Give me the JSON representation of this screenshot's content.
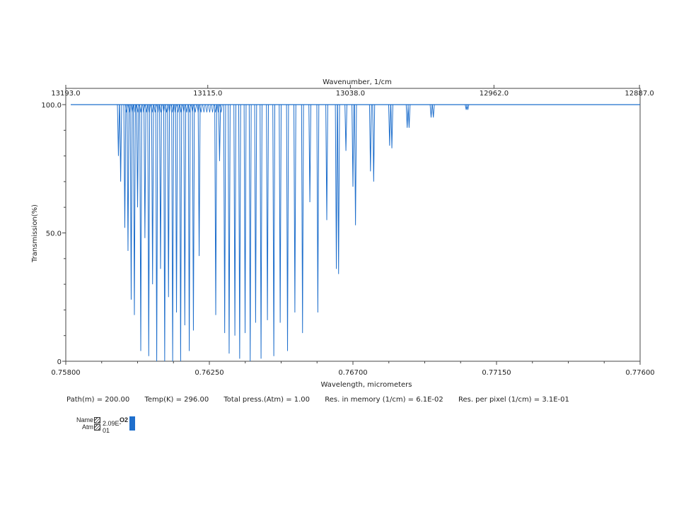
{
  "chart_data": {
    "type": "line",
    "title": "",
    "xlabel": "Wavelength, micrometers",
    "x2label": "Wavenumber, 1/cm",
    "ylabel": "Transmission(%)",
    "xlim": [
      0.758,
      0.776
    ],
    "ylim": [
      0,
      100
    ],
    "xticks": [
      "0.75800",
      "0.76250",
      "0.76700",
      "0.77150",
      "0.77600"
    ],
    "x2ticks": [
      "13193.0",
      "13115.0",
      "13038.0",
      "12962.0",
      "12887.0"
    ],
    "x2tick_positions_um": [
      0.758,
      0.76245,
      0.76692,
      0.77142,
      0.77598
    ],
    "yticks": [
      "0",
      "50.0",
      "100.0"
    ],
    "line_color": "#1f6fcc",
    "series": [
      {
        "name": "O2",
        "baseline": 100,
        "absorption_lines": [
          {
            "x": 0.75965,
            "y": 80
          },
          {
            "x": 0.75972,
            "y": 70
          },
          {
            "x": 0.75985,
            "y": 52
          },
          {
            "x": 0.75995,
            "y": 43
          },
          {
            "x": 0.76005,
            "y": 24
          },
          {
            "x": 0.76015,
            "y": 18
          },
          {
            "x": 0.76025,
            "y": 60
          },
          {
            "x": 0.76035,
            "y": 4
          },
          {
            "x": 0.76048,
            "y": 48
          },
          {
            "x": 0.7606,
            "y": 2
          },
          {
            "x": 0.76072,
            "y": 30
          },
          {
            "x": 0.76085,
            "y": 0
          },
          {
            "x": 0.76097,
            "y": 36
          },
          {
            "x": 0.7611,
            "y": 0
          },
          {
            "x": 0.76122,
            "y": 25
          },
          {
            "x": 0.76135,
            "y": 0
          },
          {
            "x": 0.76147,
            "y": 19
          },
          {
            "x": 0.7616,
            "y": 0
          },
          {
            "x": 0.76173,
            "y": 14
          },
          {
            "x": 0.76187,
            "y": 4
          },
          {
            "x": 0.762,
            "y": 12
          },
          {
            "x": 0.76218,
            "y": 41
          },
          {
            "x": 0.7627,
            "y": 18
          },
          {
            "x": 0.76282,
            "y": 78
          },
          {
            "x": 0.76298,
            "y": 11
          },
          {
            "x": 0.76312,
            "y": 3
          },
          {
            "x": 0.7633,
            "y": 10
          },
          {
            "x": 0.76345,
            "y": 1
          },
          {
            "x": 0.76362,
            "y": 11
          },
          {
            "x": 0.76378,
            "y": 0
          },
          {
            "x": 0.76395,
            "y": 15
          },
          {
            "x": 0.76412,
            "y": 1
          },
          {
            "x": 0.76432,
            "y": 16
          },
          {
            "x": 0.76452,
            "y": 2
          },
          {
            "x": 0.76472,
            "y": 15
          },
          {
            "x": 0.76495,
            "y": 4
          },
          {
            "x": 0.76518,
            "y": 19
          },
          {
            "x": 0.76542,
            "y": 11
          },
          {
            "x": 0.76565,
            "y": 62
          },
          {
            "x": 0.7659,
            "y": 19
          },
          {
            "x": 0.76618,
            "y": 55
          },
          {
            "x": 0.76648,
            "y": 36
          },
          {
            "x": 0.76655,
            "y": 34
          },
          {
            "x": 0.76678,
            "y": 82
          },
          {
            "x": 0.767,
            "y": 68
          },
          {
            "x": 0.76708,
            "y": 53
          },
          {
            "x": 0.76755,
            "y": 74
          },
          {
            "x": 0.76765,
            "y": 70
          },
          {
            "x": 0.76815,
            "y": 84
          },
          {
            "x": 0.76822,
            "y": 83
          },
          {
            "x": 0.7687,
            "y": 91
          },
          {
            "x": 0.76876,
            "y": 91
          },
          {
            "x": 0.76945,
            "y": 95
          },
          {
            "x": 0.76952,
            "y": 95
          },
          {
            "x": 0.77055,
            "y": 98
          },
          {
            "x": 0.7706,
            "y": 98
          }
        ]
      }
    ],
    "grid": false,
    "legend": "bottom-left"
  },
  "params": {
    "path": "Path(m) = 200.00",
    "temp": "Temp(K) = 296.00",
    "press": "Total press.(Atm) = 1.00",
    "res_memory": "Res. in memory (1/cm) = 6.1E-02",
    "res_pixel": "Res. per pixel (1/cm) = 3.1E-01"
  },
  "legend": {
    "name_label": "Name",
    "atm_label": "Atm",
    "gas_name": "O2",
    "gas_atm": "2.09E-01",
    "swatch_color": "#1f6fcc"
  }
}
